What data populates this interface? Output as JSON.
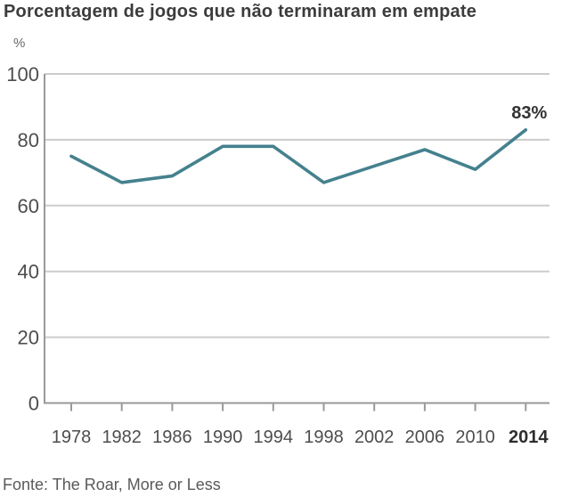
{
  "chart_data": {
    "type": "line",
    "title": "Porcentagem de jogos que não terminaram em empate",
    "ylabel": "%",
    "xlabel": "",
    "categories": [
      "1978",
      "1982",
      "1986",
      "1990",
      "1994",
      "1998",
      "2002",
      "2006",
      "2010",
      "2014"
    ],
    "values": [
      75,
      67,
      69,
      78,
      78,
      67,
      72,
      77,
      71,
      83
    ],
    "ylim": [
      0,
      100
    ],
    "yticks": [
      0,
      20,
      40,
      60,
      80,
      100
    ],
    "grid": true,
    "legend": false,
    "line_color": "#45818E",
    "annotation": {
      "text": "83%",
      "point_index": 9
    },
    "emphasized_category": "2014",
    "source": "Fonte: The Roar, More or Less"
  },
  "colors": {
    "line": "#45818E",
    "gridline": "#cccccc",
    "axis": "#999999",
    "title_text": "#3c3c3c",
    "tick_text": "#4d4d4d",
    "annotation_text": "#333333",
    "background": "#ffffff"
  }
}
